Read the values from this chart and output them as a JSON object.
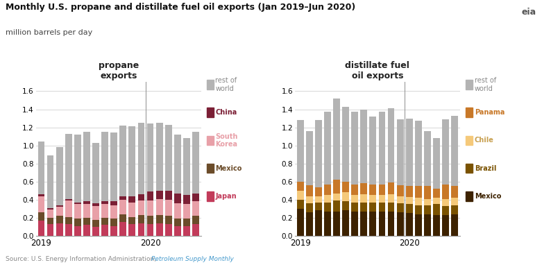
{
  "title": "Monthly U.S. propane and distillate fuel oil exports (Jan 2019–Jun 2020)",
  "subtitle": "million barrels per day",
  "propane_layers": [
    "Japan",
    "Mexico",
    "South_Korea",
    "China",
    "rest_of_world"
  ],
  "propane_data": {
    "Japan": [
      0.17,
      0.13,
      0.14,
      0.13,
      0.11,
      0.12,
      0.1,
      0.12,
      0.11,
      0.15,
      0.13,
      0.14,
      0.13,
      0.14,
      0.13,
      0.11,
      0.11,
      0.13
    ],
    "Mexico": [
      0.09,
      0.07,
      0.08,
      0.08,
      0.08,
      0.08,
      0.08,
      0.08,
      0.08,
      0.09,
      0.08,
      0.09,
      0.09,
      0.09,
      0.09,
      0.08,
      0.08,
      0.09
    ],
    "South_Korea": [
      0.18,
      0.09,
      0.1,
      0.18,
      0.16,
      0.15,
      0.15,
      0.15,
      0.15,
      0.16,
      0.16,
      0.16,
      0.17,
      0.18,
      0.18,
      0.17,
      0.16,
      0.16
    ],
    "China": [
      0.02,
      0.02,
      0.02,
      0.02,
      0.02,
      0.03,
      0.03,
      0.03,
      0.04,
      0.04,
      0.07,
      0.07,
      0.1,
      0.09,
      0.1,
      0.11,
      0.1,
      0.09
    ],
    "rest_of_world": [
      0.58,
      0.58,
      0.64,
      0.72,
      0.75,
      0.77,
      0.67,
      0.77,
      0.76,
      0.78,
      0.77,
      0.79,
      0.75,
      0.75,
      0.73,
      0.65,
      0.63,
      0.68
    ]
  },
  "propane_colors": {
    "Japan": "#c23b5a",
    "Mexico": "#6b4c2a",
    "South_Korea": "#e8a0a8",
    "China": "#7b1f35",
    "rest_of_world": "#b3b3b3"
  },
  "propane_legend": [
    {
      "label": "rest of\nworld",
      "key": "rest_of_world",
      "text_color": "#888888",
      "bold": false
    },
    {
      "label": "China",
      "key": "China",
      "text_color": "#7b1f35",
      "bold": true
    },
    {
      "label": "South\nKorea",
      "key": "South_Korea",
      "text_color": "#e8a0a8",
      "bold": true
    },
    {
      "label": "Mexico",
      "key": "Mexico",
      "text_color": "#6b4c2a",
      "bold": true
    },
    {
      "label": "Japan",
      "key": "Japan",
      "text_color": "#c23b5a",
      "bold": true
    }
  ],
  "distillate_layers": [
    "Mexico",
    "Brazil",
    "Chile",
    "Panama",
    "rest_of_world"
  ],
  "distillate_data": {
    "Mexico": [
      0.3,
      0.26,
      0.28,
      0.27,
      0.27,
      0.28,
      0.27,
      0.27,
      0.27,
      0.27,
      0.27,
      0.26,
      0.25,
      0.24,
      0.24,
      0.23,
      0.23,
      0.24
    ],
    "Brazil": [
      0.1,
      0.1,
      0.09,
      0.1,
      0.12,
      0.1,
      0.1,
      0.1,
      0.1,
      0.1,
      0.1,
      0.1,
      0.1,
      0.1,
      0.1,
      0.12,
      0.1,
      0.1
    ],
    "Chile": [
      0.1,
      0.08,
      0.07,
      0.08,
      0.08,
      0.1,
      0.08,
      0.09,
      0.08,
      0.08,
      0.09,
      0.08,
      0.08,
      0.08,
      0.07,
      0.07,
      0.08,
      0.08
    ],
    "Panama": [
      0.1,
      0.12,
      0.1,
      0.12,
      0.15,
      0.12,
      0.12,
      0.12,
      0.12,
      0.12,
      0.13,
      0.12,
      0.12,
      0.13,
      0.14,
      0.1,
      0.16,
      0.13
    ],
    "rest_of_world": [
      0.68,
      0.6,
      0.74,
      0.8,
      0.9,
      0.83,
      0.8,
      0.82,
      0.75,
      0.8,
      0.82,
      0.73,
      0.75,
      0.72,
      0.61,
      0.56,
      0.72,
      0.78
    ]
  },
  "distillate_colors": {
    "Mexico": "#3d2200",
    "Brazil": "#7a5200",
    "Chile": "#f5c97a",
    "Panama": "#c87828",
    "rest_of_world": "#b3b3b3"
  },
  "distillate_legend": [
    {
      "label": "rest of\nworld",
      "key": "rest_of_world",
      "text_color": "#888888",
      "bold": false
    },
    {
      "label": "Panama",
      "key": "Panama",
      "text_color": "#c87828",
      "bold": true
    },
    {
      "label": "Chile",
      "key": "Chile",
      "text_color": "#c8a050",
      "bold": true
    },
    {
      "label": "Brazil",
      "key": "Brazil",
      "text_color": "#7a5200",
      "bold": true
    },
    {
      "label": "Mexico",
      "key": "Mexico",
      "text_color": "#3d2200",
      "bold": true
    }
  ],
  "ylim": [
    0.0,
    1.7
  ],
  "yticks": [
    0.0,
    0.2,
    0.4,
    0.6,
    0.8,
    1.0,
    1.2,
    1.4,
    1.6
  ],
  "background_color": "#ffffff",
  "grid_color": "#d0d0d0"
}
